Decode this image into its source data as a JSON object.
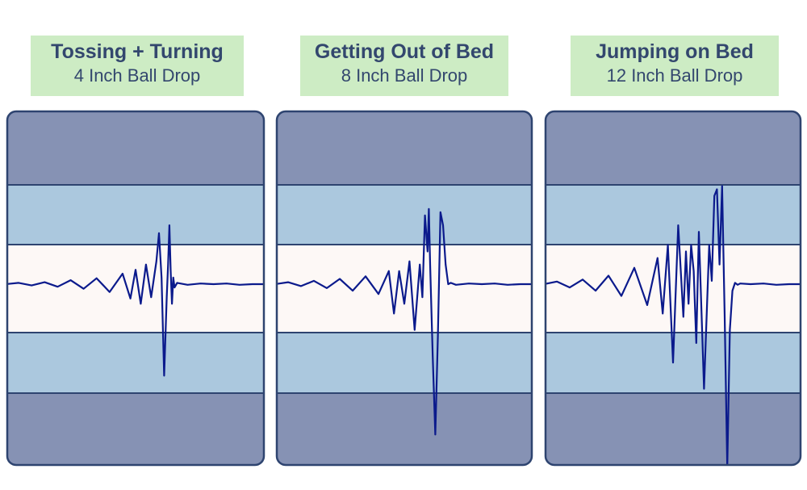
{
  "colors": {
    "label_bg": "#cdecc4",
    "label_text": "#33476e",
    "outer_band": "#8692b4",
    "middle_band": "#abc8de",
    "center_band": "#fdf8f6",
    "border": "#2e4470",
    "wave": "#0b1a8c"
  },
  "chart_data": [
    {
      "type": "line",
      "title": "Tossing + Turning",
      "subtitle": "4 Inch Ball Drop",
      "x": [
        0,
        5,
        10,
        15,
        20,
        25,
        30,
        35,
        40,
        45,
        48,
        50,
        52,
        54,
        56,
        58,
        59,
        60,
        61,
        62,
        62.5,
        63,
        63.5,
        64,
        64.5,
        65,
        66,
        70,
        75,
        80,
        85,
        90,
        95,
        100
      ],
      "y": [
        0,
        0.02,
        -0.02,
        0.03,
        -0.04,
        0.06,
        -0.07,
        0.09,
        -0.12,
        0.16,
        -0.22,
        0.22,
        -0.3,
        0.3,
        -0.2,
        0.35,
        0.78,
        0.1,
        -1.4,
        -0.2,
        0.3,
        0.9,
        0.2,
        -0.3,
        0.1,
        -0.05,
        0.02,
        -0.01,
        0.01,
        0,
        0.01,
        -0.01,
        0,
        0
      ]
    },
    {
      "type": "line",
      "title": "Getting Out of Bed",
      "subtitle": "8 Inch Ball Drop",
      "x": [
        0,
        5,
        10,
        15,
        20,
        25,
        30,
        35,
        40,
        44,
        46,
        48,
        50,
        52,
        54,
        56,
        57,
        58,
        59,
        59.5,
        60,
        61,
        62,
        63,
        64,
        65,
        66,
        67,
        68,
        70,
        75,
        80,
        85,
        90,
        95,
        100
      ],
      "y": [
        0,
        0.03,
        -0.03,
        0.05,
        -0.06,
        0.08,
        -0.1,
        0.12,
        -0.15,
        0.2,
        -0.45,
        0.2,
        -0.3,
        0.35,
        -0.7,
        0.3,
        -0.2,
        1.05,
        0.5,
        1.15,
        0.3,
        -1.1,
        -2.3,
        -0.8,
        1.1,
        0.9,
        0.3,
        0,
        0.02,
        -0.01,
        0.01,
        0,
        0.01,
        -0.01,
        0,
        0
      ]
    },
    {
      "type": "line",
      "title": "Jumping on Bed",
      "subtitle": "12 Inch Ball Drop",
      "x": [
        0,
        5,
        10,
        15,
        20,
        25,
        30,
        35,
        40,
        44,
        46,
        48,
        50,
        52,
        54,
        55,
        56,
        57,
        58,
        59,
        60,
        62,
        64,
        65,
        66,
        67,
        68,
        69,
        70,
        71,
        72,
        73,
        74,
        75,
        76,
        80,
        85,
        90,
        95,
        100
      ],
      "y": [
        0,
        0.04,
        -0.05,
        0.07,
        -0.1,
        0.13,
        -0.18,
        0.25,
        -0.32,
        0.4,
        -0.45,
        0.6,
        -1.2,
        0.9,
        -0.5,
        0.5,
        -0.3,
        0.6,
        0.2,
        -0.9,
        0.8,
        -1.6,
        0.6,
        0.05,
        1.35,
        1.45,
        0.3,
        1.5,
        -0.5,
        -2.8,
        -0.7,
        -0.1,
        0.02,
        -0.01,
        0.01,
        0,
        0.01,
        -0.01,
        0,
        0
      ]
    }
  ]
}
